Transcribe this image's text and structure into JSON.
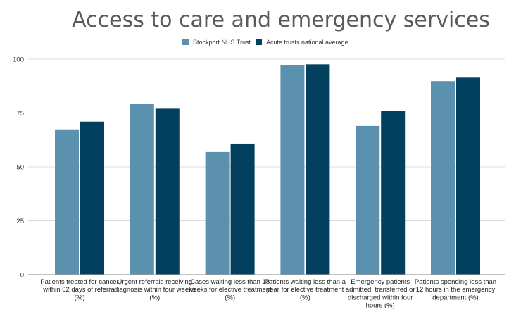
{
  "chart_data": {
    "type": "bar",
    "title": "Access to care and emergency services",
    "xlabel": "",
    "ylabel": "",
    "ylim": [
      0,
      100
    ],
    "yticks": [
      0,
      25,
      50,
      75,
      100
    ],
    "grid": true,
    "legend_position": "top-center",
    "categories": [
      [
        "Patients treated for cancer",
        "within 62 days of referral",
        "(%)"
      ],
      [
        "Urgent referrals receiving",
        "diagnosis within four weeks",
        "(%)"
      ],
      [
        "Cases waiting less than 18",
        "weeks for elective treatment",
        "(%)"
      ],
      [
        "Patients waiting less than a",
        "year for elective treatment",
        "(%)"
      ],
      [
        "Emergency patients",
        "admitted, transferred or",
        "discharged within four",
        "hours (%)"
      ],
      [
        "Patients spending less than",
        "12 hours in the emergency",
        "department (%)"
      ]
    ],
    "series": [
      {
        "name": "Stockport NHS Trust",
        "color": "#5b91ae",
        "values": [
          67.4,
          79.4,
          56.9,
          97.2,
          69.0,
          89.8
        ]
      },
      {
        "name": "Acute trusts national average",
        "color": "#03405f",
        "values": [
          71.0,
          77.0,
          60.8,
          97.6,
          76.0,
          91.4
        ]
      }
    ]
  }
}
